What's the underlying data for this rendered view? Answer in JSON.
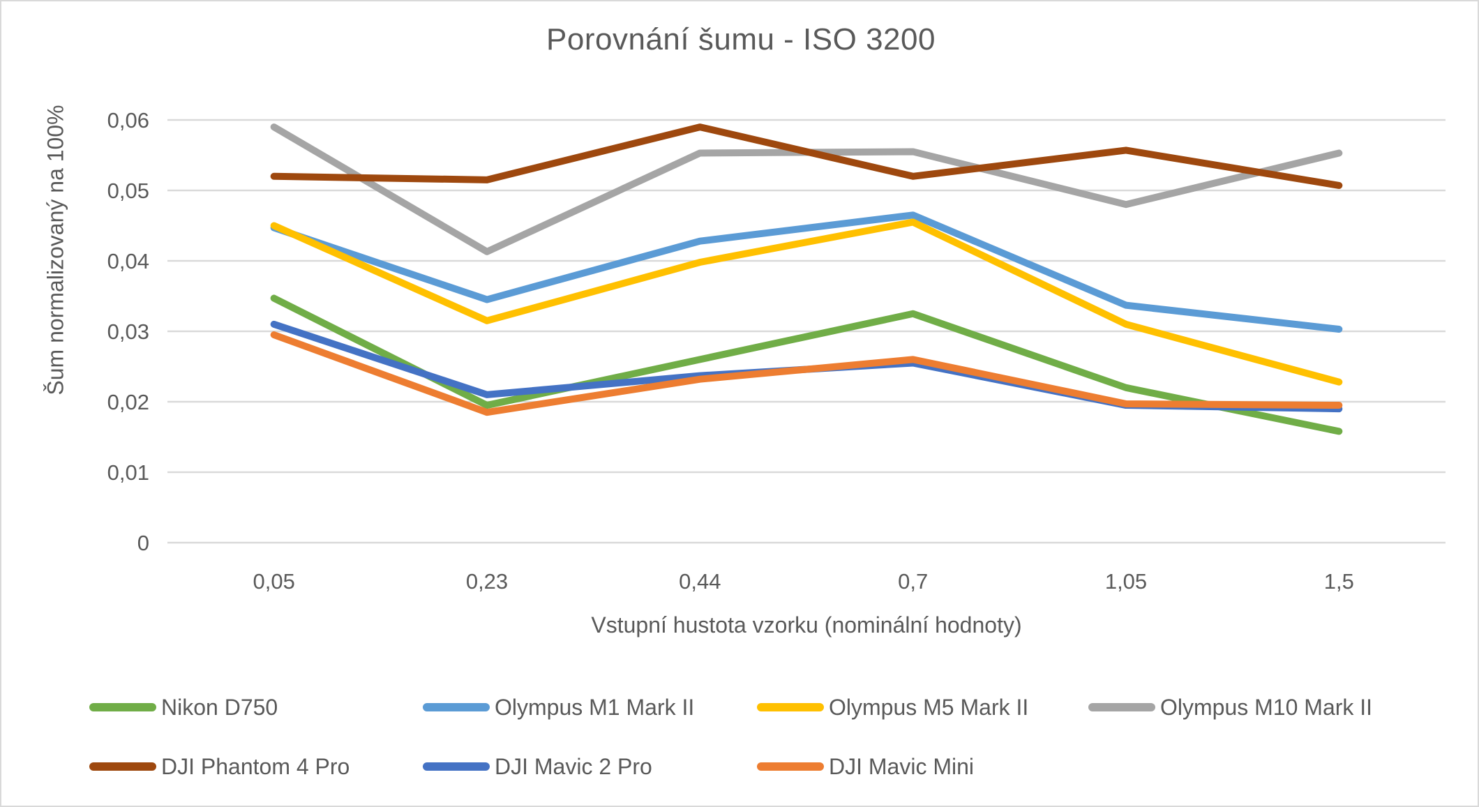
{
  "title": "Porovnání šumu - ISO 3200",
  "chart_data": {
    "type": "line",
    "title": "Porovnání šumu - ISO 3200",
    "xlabel": "Vstupní hustota vzorku (nominální hodnoty)",
    "ylabel": "Šum normalizovaný na 100%",
    "categories": [
      "0,05",
      "0,23",
      "0,44",
      "0,7",
      "1,05",
      "1,5"
    ],
    "ylim": [
      0,
      0.06
    ],
    "ytick_step": 0.01,
    "ytick_labels": [
      "0",
      "0,01",
      "0,02",
      "0,03",
      "0,04",
      "0,05",
      "0,06"
    ],
    "grid": "horizontal",
    "legend_position": "bottom",
    "text_color": "#595959",
    "gridline_color": "#D9D9D9",
    "series": [
      {
        "name": "Nikon D750",
        "color": "#70AD47",
        "values": [
          0.0347,
          0.0195,
          0.026,
          0.0325,
          0.022,
          0.0158
        ]
      },
      {
        "name": "Olympus M1 Mark II",
        "color": "#5B9BD5",
        "values": [
          0.0447,
          0.0345,
          0.0428,
          0.0465,
          0.0337,
          0.0303
        ]
      },
      {
        "name": "Olympus M5 Mark II",
        "color": "#FFC000",
        "values": [
          0.045,
          0.0315,
          0.0398,
          0.0455,
          0.031,
          0.0228
        ]
      },
      {
        "name": "Olympus M10 Mark II",
        "color": "#A5A5A5",
        "values": [
          0.059,
          0.0413,
          0.0553,
          0.0555,
          0.048,
          0.0553
        ]
      },
      {
        "name": "DJI Phantom 4 Pro",
        "color": "#9E480E",
        "values": [
          0.052,
          0.0515,
          0.059,
          0.052,
          0.0557,
          0.0507
        ]
      },
      {
        "name": "DJI Mavic 2 Pro",
        "color": "#4472C4",
        "values": [
          0.031,
          0.021,
          0.0237,
          0.0255,
          0.0195,
          0.019
        ]
      },
      {
        "name": "DJI Mavic Mini",
        "color": "#ED7D31",
        "values": [
          0.0295,
          0.0185,
          0.0232,
          0.026,
          0.0197,
          0.0195
        ]
      }
    ]
  }
}
